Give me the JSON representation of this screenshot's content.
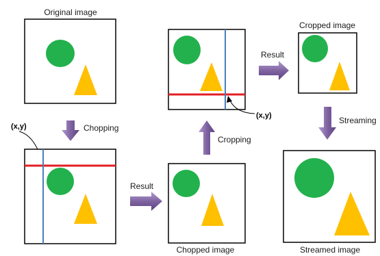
{
  "labels": {
    "original": "Original image",
    "cropped": "Cropped image",
    "chopped": "Chopped image",
    "streamed": "Streamed image"
  },
  "arrows": {
    "chopping": "Chopping",
    "cropping": "Cropping",
    "streaming": "Streaming",
    "result_1": "Result",
    "result_2": "Result"
  },
  "point_label": "(x,y)",
  "colors": {
    "circle": "#22b14c",
    "triangle": "#ffc000",
    "red_line": "#e31e24",
    "blue_line": "#4a7ebb",
    "arrow_fill": "#8064a2",
    "frame": "#000000"
  }
}
